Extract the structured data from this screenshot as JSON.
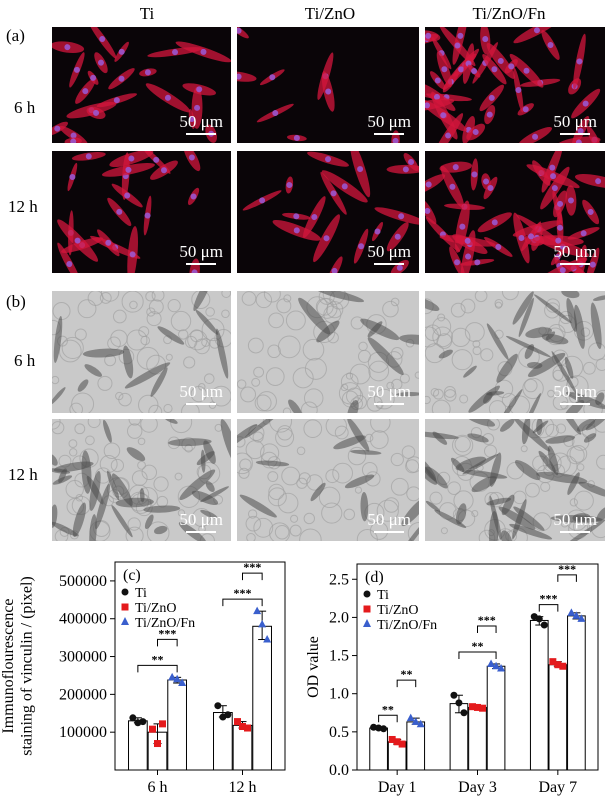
{
  "panel_labels": {
    "a": "(a)",
    "b": "(b)",
    "c": "(c)",
    "d": "(d)"
  },
  "columns": [
    "Ti",
    "Ti/ZnO",
    "Ti/ZnO/Fn"
  ],
  "rows": [
    "6 h",
    "12 h"
  ],
  "scale_bar": "50 μm",
  "chart_data": [
    {
      "type": "bar",
      "panel": "(c)",
      "ylabel": "Immunoflourescence staining of vinculin / (pixel)",
      "categories": [
        "6 h",
        "12 h"
      ],
      "ylim": [
        0,
        550000
      ],
      "yticks": [
        "100000",
        "200000",
        "300000",
        "400000",
        "500000"
      ],
      "legend": "top-left",
      "series": [
        {
          "name": "Ti",
          "color": "#111111",
          "marker": "circle",
          "values": [
            130000,
            152000
          ],
          "points": [
            [
              138000,
              125000,
              128000
            ],
            [
              170000,
              140000,
              146000
            ]
          ]
        },
        {
          "name": "Ti/ZnO",
          "color": "#e41a1c",
          "marker": "square",
          "values": [
            100000,
            118000
          ],
          "points": [
            [
              108000,
              70000,
              122000
            ],
            [
              128000,
              115000,
              111000
            ]
          ]
        },
        {
          "name": "Ti/ZnO/Fn",
          "color": "#3a5fcd",
          "marker": "triangle",
          "values": [
            238000,
            380000
          ],
          "points": [
            [
              245000,
              240000,
              230000
            ],
            [
              420000,
              385000,
              345000
            ]
          ]
        }
      ],
      "significance": [
        {
          "label": "**",
          "groups": [
            "Ti",
            "Ti/ZnO/Fn"
          ],
          "category": "6 h"
        },
        {
          "label": "***",
          "groups": [
            "Ti/ZnO",
            "Ti/ZnO/Fn"
          ],
          "category": "6 h"
        },
        {
          "label": "***",
          "groups": [
            "Ti",
            "Ti/ZnO/Fn"
          ],
          "category": "12 h"
        },
        {
          "label": "***",
          "groups": [
            "Ti/ZnO",
            "Ti/ZnO/Fn"
          ],
          "category": "12 h"
        }
      ]
    },
    {
      "type": "bar",
      "panel": "(d)",
      "ylabel": "OD value",
      "categories": [
        "Day 1",
        "Day 3",
        "Day 7"
      ],
      "ylim": [
        0,
        2.7
      ],
      "yticks": [
        "0.0",
        "0.5",
        "1.0",
        "1.5",
        "2.0",
        "2.5"
      ],
      "legend": "top-left",
      "series": [
        {
          "name": "Ti",
          "color": "#111111",
          "marker": "circle",
          "values": [
            0.55,
            0.87,
            1.96
          ],
          "points": [
            [
              0.56,
              0.55,
              0.54
            ],
            [
              0.98,
              0.88,
              0.75
            ],
            [
              2.01,
              1.98,
              1.9
            ]
          ]
        },
        {
          "name": "Ti/ZnO",
          "color": "#e41a1c",
          "marker": "square",
          "values": [
            0.37,
            0.82,
            1.38
          ],
          "points": [
            [
              0.4,
              0.37,
              0.34
            ],
            [
              0.83,
              0.82,
              0.81
            ],
            [
              1.42,
              1.38,
              1.36
            ]
          ]
        },
        {
          "name": "Ti/ZnO/Fn",
          "color": "#3a5fcd",
          "marker": "triangle",
          "values": [
            0.63,
            1.36,
            2.02
          ],
          "points": [
            [
              0.68,
              0.63,
              0.6
            ],
            [
              1.39,
              1.36,
              1.33
            ],
            [
              2.06,
              2.02,
              1.98
            ]
          ]
        }
      ],
      "significance": [
        {
          "label": "**",
          "groups": [
            "Ti",
            "Ti/ZnO"
          ],
          "category": "Day 1"
        },
        {
          "label": "**",
          "groups": [
            "Ti/ZnO",
            "Ti/ZnO/Fn"
          ],
          "category": "Day 1"
        },
        {
          "label": "**",
          "groups": [
            "Ti",
            "Ti/ZnO/Fn"
          ],
          "category": "Day 3"
        },
        {
          "label": "***",
          "groups": [
            "Ti/ZnO",
            "Ti/ZnO/Fn"
          ],
          "category": "Day 3"
        },
        {
          "label": "***",
          "groups": [
            "Ti",
            "Ti/ZnO"
          ],
          "category": "Day 7"
        },
        {
          "label": "***",
          "groups": [
            "Ti/ZnO",
            "Ti/ZnO/Fn"
          ],
          "category": "Day 7"
        }
      ]
    }
  ]
}
